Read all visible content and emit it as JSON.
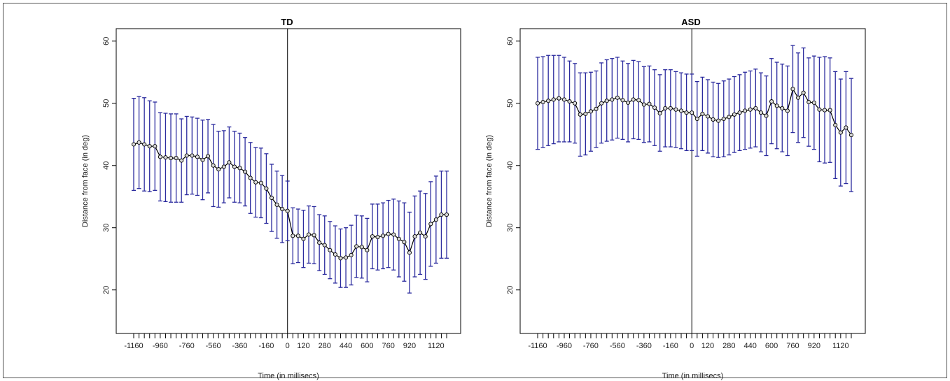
{
  "chart_data": [
    {
      "type": "line",
      "title": "TD",
      "xlabel": "Time (in millisecs)",
      "ylabel": "Distance from face (in deg)",
      "xlim": [
        -1160,
        1200
      ],
      "ylim": [
        13,
        62
      ],
      "xticks": [
        -1160,
        -960,
        -760,
        -560,
        -360,
        -160,
        0,
        120,
        280,
        440,
        600,
        760,
        920,
        1120
      ],
      "yticks": [
        20,
        30,
        40,
        50,
        60
      ],
      "vline_x": 0,
      "mean_color": "#000000",
      "errorbar_color": "#2b2b9e",
      "x": [
        -1160,
        -1120,
        -1080,
        -1040,
        -1000,
        -960,
        -920,
        -880,
        -840,
        -800,
        -760,
        -720,
        -680,
        -640,
        -600,
        -560,
        -520,
        -480,
        -440,
        -400,
        -360,
        -320,
        -280,
        -240,
        -200,
        -160,
        -120,
        -80,
        -40,
        0,
        40,
        80,
        120,
        160,
        200,
        240,
        280,
        320,
        360,
        400,
        440,
        480,
        520,
        560,
        600,
        640,
        680,
        720,
        760,
        800,
        840,
        880,
        920,
        960,
        1000,
        1040,
        1080,
        1120,
        1160,
        1200
      ],
      "y": [
        43.4,
        43.7,
        43.4,
        43.1,
        43.1,
        41.4,
        41.3,
        41.2,
        41.2,
        40.8,
        41.6,
        41.6,
        41.4,
        40.9,
        41.5,
        40.0,
        39.4,
        39.8,
        40.5,
        39.8,
        39.6,
        39.0,
        38.0,
        37.3,
        37.2,
        36.3,
        34.8,
        33.7,
        33.0,
        32.7,
        28.7,
        28.7,
        28.2,
        28.9,
        28.8,
        27.6,
        27.2,
        26.4,
        25.7,
        25.1,
        25.2,
        25.6,
        27.0,
        26.9,
        26.4,
        28.6,
        28.5,
        28.7,
        29.0,
        28.9,
        28.2,
        27.7,
        26.0,
        28.6,
        29.2,
        28.6,
        30.6,
        31.3,
        32.1,
        32.1
      ],
      "upper": [
        50.8,
        51.1,
        50.9,
        50.4,
        50.2,
        48.5,
        48.4,
        48.3,
        48.3,
        47.5,
        47.9,
        47.8,
        47.6,
        47.3,
        47.4,
        46.6,
        45.5,
        45.6,
        46.2,
        45.5,
        45.2,
        44.5,
        43.7,
        42.9,
        42.8,
        41.9,
        40.2,
        39.1,
        38.4,
        37.5,
        33.2,
        33.0,
        32.8,
        33.5,
        33.4,
        32.1,
        31.9,
        31.0,
        30.3,
        29.8,
        30.0,
        30.4,
        32.0,
        31.9,
        31.5,
        33.8,
        33.8,
        34.0,
        34.4,
        34.6,
        34.3,
        34.0,
        32.5,
        35.1,
        35.9,
        35.5,
        37.4,
        38.3,
        39.1,
        39.1
      ],
      "lower": [
        36.0,
        36.3,
        35.9,
        35.8,
        36.0,
        34.3,
        34.2,
        34.1,
        34.1,
        34.1,
        35.3,
        35.4,
        35.2,
        34.5,
        35.6,
        33.4,
        33.3,
        34.0,
        34.8,
        34.1,
        34.0,
        33.5,
        32.3,
        31.7,
        31.6,
        30.7,
        29.4,
        28.3,
        27.6,
        27.9,
        24.2,
        24.4,
        23.6,
        24.3,
        24.2,
        23.1,
        22.5,
        21.8,
        21.1,
        20.4,
        20.4,
        20.8,
        22.0,
        21.9,
        21.3,
        23.4,
        23.2,
        23.4,
        23.6,
        23.2,
        22.1,
        21.4,
        19.5,
        22.1,
        22.5,
        21.7,
        23.8,
        24.3,
        25.1,
        25.1
      ]
    },
    {
      "type": "line",
      "title": "ASD",
      "xlabel": "Time (in millisecs)",
      "ylabel": "Distance from face (in deg)",
      "xlim": [
        -1160,
        1200
      ],
      "ylim": [
        13,
        62
      ],
      "xticks": [
        -1160,
        -960,
        -760,
        -560,
        -360,
        -160,
        0,
        120,
        280,
        440,
        600,
        760,
        920,
        1120
      ],
      "yticks": [
        20,
        30,
        40,
        50,
        60
      ],
      "vline_x": 0,
      "mean_color": "#000000",
      "errorbar_color": "#2b2b9e",
      "x": [
        -1160,
        -1120,
        -1080,
        -1040,
        -1000,
        -960,
        -920,
        -880,
        -840,
        -800,
        -760,
        -720,
        -680,
        -640,
        -600,
        -560,
        -520,
        -480,
        -440,
        -400,
        -360,
        -320,
        -280,
        -240,
        -200,
        -160,
        -120,
        -80,
        -40,
        0,
        40,
        80,
        120,
        160,
        200,
        240,
        280,
        320,
        360,
        400,
        440,
        480,
        520,
        560,
        600,
        640,
        680,
        720,
        760,
        800,
        840,
        880,
        920,
        960,
        1000,
        1040,
        1080,
        1120,
        1160,
        1200
      ],
      "y": [
        50.0,
        50.2,
        50.4,
        50.6,
        50.8,
        50.6,
        50.3,
        50.0,
        48.2,
        48.3,
        48.7,
        49.1,
        50.0,
        50.4,
        50.6,
        50.9,
        50.5,
        50.1,
        50.6,
        50.5,
        49.8,
        49.9,
        49.3,
        48.4,
        49.2,
        49.2,
        49.0,
        48.8,
        48.5,
        48.5,
        47.5,
        48.3,
        47.9,
        47.4,
        47.2,
        47.5,
        47.8,
        48.2,
        48.5,
        48.8,
        49.0,
        49.2,
        48.5,
        48.0,
        50.3,
        49.6,
        49.2,
        48.8,
        52.3,
        50.9,
        51.7,
        50.2,
        50.1,
        49.0,
        48.9,
        48.9,
        46.5,
        45.3,
        46.1,
        44.9
      ],
      "upper": [
        57.4,
        57.5,
        57.7,
        57.7,
        57.7,
        57.4,
        56.8,
        56.4,
        54.9,
        54.9,
        55.0,
        55.2,
        56.5,
        57.0,
        57.2,
        57.4,
        56.8,
        56.4,
        56.9,
        56.7,
        55.9,
        56.0,
        55.4,
        54.6,
        55.4,
        55.4,
        55.1,
        54.9,
        54.7,
        54.7,
        53.5,
        54.2,
        53.8,
        53.4,
        53.2,
        53.6,
        53.9,
        54.3,
        54.6,
        55.0,
        55.2,
        55.5,
        54.9,
        54.4,
        57.2,
        56.6,
        56.3,
        56.0,
        59.3,
        58.1,
        58.9,
        57.3,
        57.6,
        57.4,
        57.5,
        57.3,
        55.1,
        53.9,
        55.1,
        54.0
      ],
      "lower": [
        42.6,
        42.9,
        43.2,
        43.5,
        43.8,
        43.8,
        43.8,
        43.6,
        41.5,
        41.7,
        42.3,
        42.9,
        43.6,
        43.9,
        44.1,
        44.4,
        44.2,
        43.8,
        44.3,
        44.2,
        43.7,
        43.8,
        43.2,
        42.3,
        43.0,
        43.0,
        42.9,
        42.7,
        42.4,
        42.4,
        41.5,
        42.4,
        42.0,
        41.4,
        41.3,
        41.4,
        41.7,
        42.1,
        42.4,
        42.6,
        42.8,
        43.0,
        42.2,
        41.6,
        43.5,
        42.7,
        42.2,
        41.6,
        45.3,
        43.7,
        44.5,
        43.1,
        42.6,
        40.6,
        40.4,
        40.5,
        37.9,
        36.7,
        37.1,
        35.8
      ]
    }
  ]
}
